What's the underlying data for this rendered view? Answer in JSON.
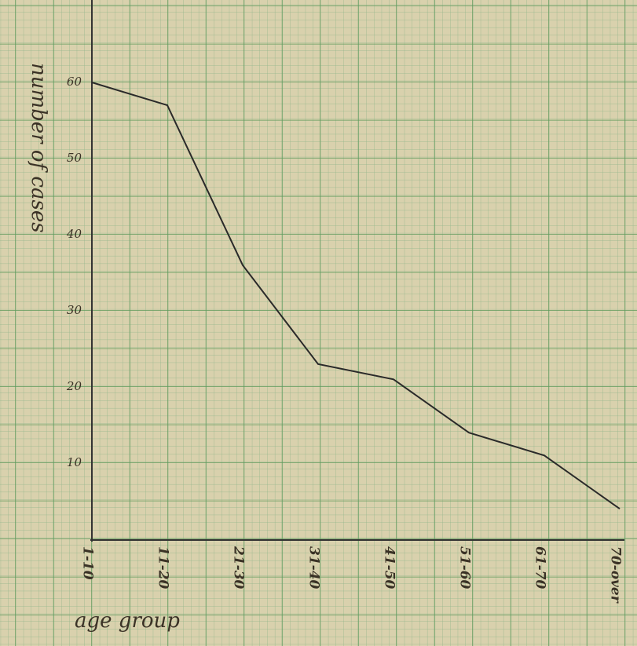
{
  "chart_data": {
    "type": "line",
    "y_label": "number of cases",
    "x_label": "age group",
    "categories": [
      "1-10",
      "11-20",
      "21-30",
      "31-40",
      "41-50",
      "51-60",
      "61-70",
      "70-over"
    ],
    "values": [
      60,
      57,
      36,
      23,
      21,
      14,
      11,
      4
    ],
    "color": "#2a2a2a",
    "ylim": [
      0,
      70
    ],
    "yticks": [
      10,
      20,
      30,
      40,
      50,
      60
    ]
  }
}
